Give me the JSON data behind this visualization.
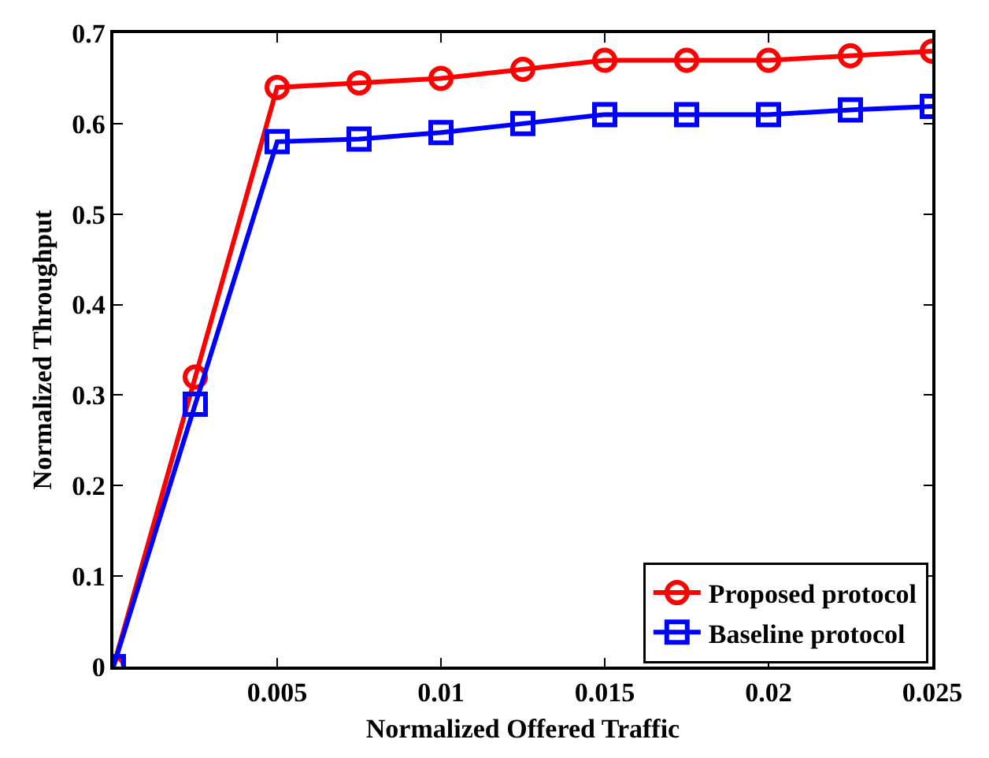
{
  "chart_data": {
    "type": "line",
    "xlabel": "Normalized Offered Traffic",
    "ylabel": "Normalized Throughput",
    "x": [
      0,
      0.0025,
      0.005,
      0.0075,
      0.01,
      0.0125,
      0.015,
      0.0175,
      0.02,
      0.0225,
      0.025
    ],
    "series": [
      {
        "name": "Proposed protocol",
        "color": "#ff0000",
        "marker": "circle",
        "values": [
          0,
          0.32,
          0.64,
          0.645,
          0.65,
          0.66,
          0.67,
          0.67,
          0.67,
          0.675,
          0.68
        ]
      },
      {
        "name": "Baseline protocol",
        "color": "#0000ff",
        "marker": "square",
        "values": [
          0,
          0.29,
          0.58,
          0.583,
          0.59,
          0.6,
          0.61,
          0.61,
          0.61,
          0.615,
          0.619
        ]
      }
    ],
    "xlim": [
      0,
      0.025
    ],
    "xticks": [
      0.005,
      0.01,
      0.015,
      0.02,
      0.025
    ],
    "ylim": [
      0,
      0.7
    ],
    "yticks": [
      0,
      0.1,
      0.2,
      0.3,
      0.4,
      0.5,
      0.6,
      0.7
    ],
    "grid": false,
    "legend": "bottom right",
    "line_style": "solid"
  }
}
